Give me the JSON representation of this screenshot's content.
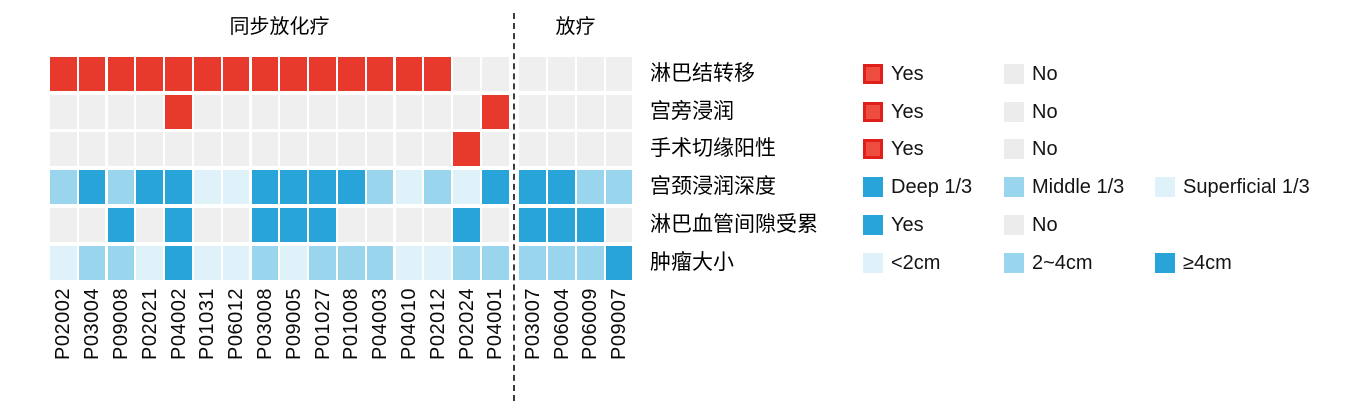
{
  "colors": {
    "red_cell": "#e8392d",
    "red_legend_fill": "#ef4c40",
    "red_legend_border": "#e01f1a",
    "gray": "#efefef",
    "blue_deep": "#29a4d9",
    "blue_mid": "#99d6ee",
    "blue_light": "#dff2fa",
    "separator": "#3c3c3c"
  },
  "chart_data": {
    "type": "heatmap",
    "orientation": "patients-as-columns",
    "groups": [
      {
        "label": "同步放化疗",
        "patients": [
          "P02002",
          "P03004",
          "P09008",
          "P02021",
          "P04002",
          "P01031",
          "P06012",
          "P03008",
          "P09005",
          "P01027",
          "P01008",
          "P04003",
          "P04010",
          "P02012",
          "P02024",
          "P04001"
        ]
      },
      {
        "label": "放疗",
        "patients": [
          "P03007",
          "P06004",
          "P06009",
          "P09007"
        ]
      }
    ],
    "rows": [
      {
        "label": "淋巴结转移",
        "legend": [
          {
            "label": "Yes",
            "cell": "#e8392d",
            "swatch": "#ef4c40",
            "swatch_border": "#e01f1a"
          },
          {
            "label": "No",
            "cell": "#efefef",
            "swatch": "#ececec"
          }
        ],
        "values": [
          "Yes",
          "Yes",
          "Yes",
          "Yes",
          "Yes",
          "Yes",
          "Yes",
          "Yes",
          "Yes",
          "Yes",
          "Yes",
          "Yes",
          "Yes",
          "Yes",
          "No",
          "No",
          "No",
          "No",
          "No",
          "No"
        ]
      },
      {
        "label": "宫旁浸润",
        "legend": [
          {
            "label": "Yes",
            "cell": "#e8392d",
            "swatch": "#ef4c40",
            "swatch_border": "#e01f1a"
          },
          {
            "label": "No",
            "cell": "#efefef",
            "swatch": "#ececec"
          }
        ],
        "values": [
          "No",
          "No",
          "No",
          "No",
          "Yes",
          "No",
          "No",
          "No",
          "No",
          "No",
          "No",
          "No",
          "No",
          "No",
          "No",
          "Yes",
          "No",
          "No",
          "No",
          "No"
        ]
      },
      {
        "label": "手术切缘阳性",
        "legend": [
          {
            "label": "Yes",
            "cell": "#e8392d",
            "swatch": "#ef4c40",
            "swatch_border": "#e01f1a"
          },
          {
            "label": "No",
            "cell": "#efefef",
            "swatch": "#ececec"
          }
        ],
        "values": [
          "No",
          "No",
          "No",
          "No",
          "No",
          "No",
          "No",
          "No",
          "No",
          "No",
          "No",
          "No",
          "No",
          "No",
          "Yes",
          "No",
          "No",
          "No",
          "No",
          "No"
        ]
      },
      {
        "label": "宫颈浸润深度",
        "legend": [
          {
            "label": "Deep 1/3",
            "cell": "#29a4d9",
            "swatch": "#29a4d9"
          },
          {
            "label": "Middle 1/3",
            "cell": "#99d6ee",
            "swatch": "#99d6ee"
          },
          {
            "label": "Superficial 1/3",
            "cell": "#dff2fa",
            "swatch": "#dff2fa"
          }
        ],
        "values": [
          "Middle 1/3",
          "Deep 1/3",
          "Middle 1/3",
          "Deep 1/3",
          "Deep 1/3",
          "Superficial 1/3",
          "Superficial 1/3",
          "Deep 1/3",
          "Deep 1/3",
          "Deep 1/3",
          "Deep 1/3",
          "Middle 1/3",
          "Superficial 1/3",
          "Middle 1/3",
          "Superficial 1/3",
          "Deep 1/3",
          "Deep 1/3",
          "Deep 1/3",
          "Middle 1/3",
          "Middle 1/3"
        ]
      },
      {
        "label": "淋巴血管间隙受累",
        "legend": [
          {
            "label": "Yes",
            "cell": "#29a4d9",
            "swatch": "#29a4d9"
          },
          {
            "label": "No",
            "cell": "#efefef",
            "swatch": "#ececec"
          }
        ],
        "values": [
          "No",
          "No",
          "Yes",
          "No",
          "Yes",
          "No",
          "No",
          "Yes",
          "Yes",
          "Yes",
          "No",
          "No",
          "No",
          "No",
          "Yes",
          "No",
          "Yes",
          "Yes",
          "Yes",
          "No"
        ]
      },
      {
        "label": "肿瘤大小",
        "legend": [
          {
            "label": "<2cm",
            "cell": "#dff2fa",
            "swatch": "#dff2fa"
          },
          {
            "label": "2~4cm",
            "cell": "#99d6ee",
            "swatch": "#99d6ee"
          },
          {
            "label": "≥4cm",
            "cell": "#29a4d9",
            "swatch": "#29a4d9"
          }
        ],
        "values": [
          "<2cm",
          "2~4cm",
          "2~4cm",
          "<2cm",
          "≥4cm",
          "<2cm",
          "<2cm",
          "2~4cm",
          "<2cm",
          "2~4cm",
          "2~4cm",
          "2~4cm",
          "<2cm",
          "<2cm",
          "2~4cm",
          "2~4cm",
          "2~4cm",
          "2~4cm",
          "2~4cm",
          "≥4cm"
        ]
      }
    ]
  }
}
